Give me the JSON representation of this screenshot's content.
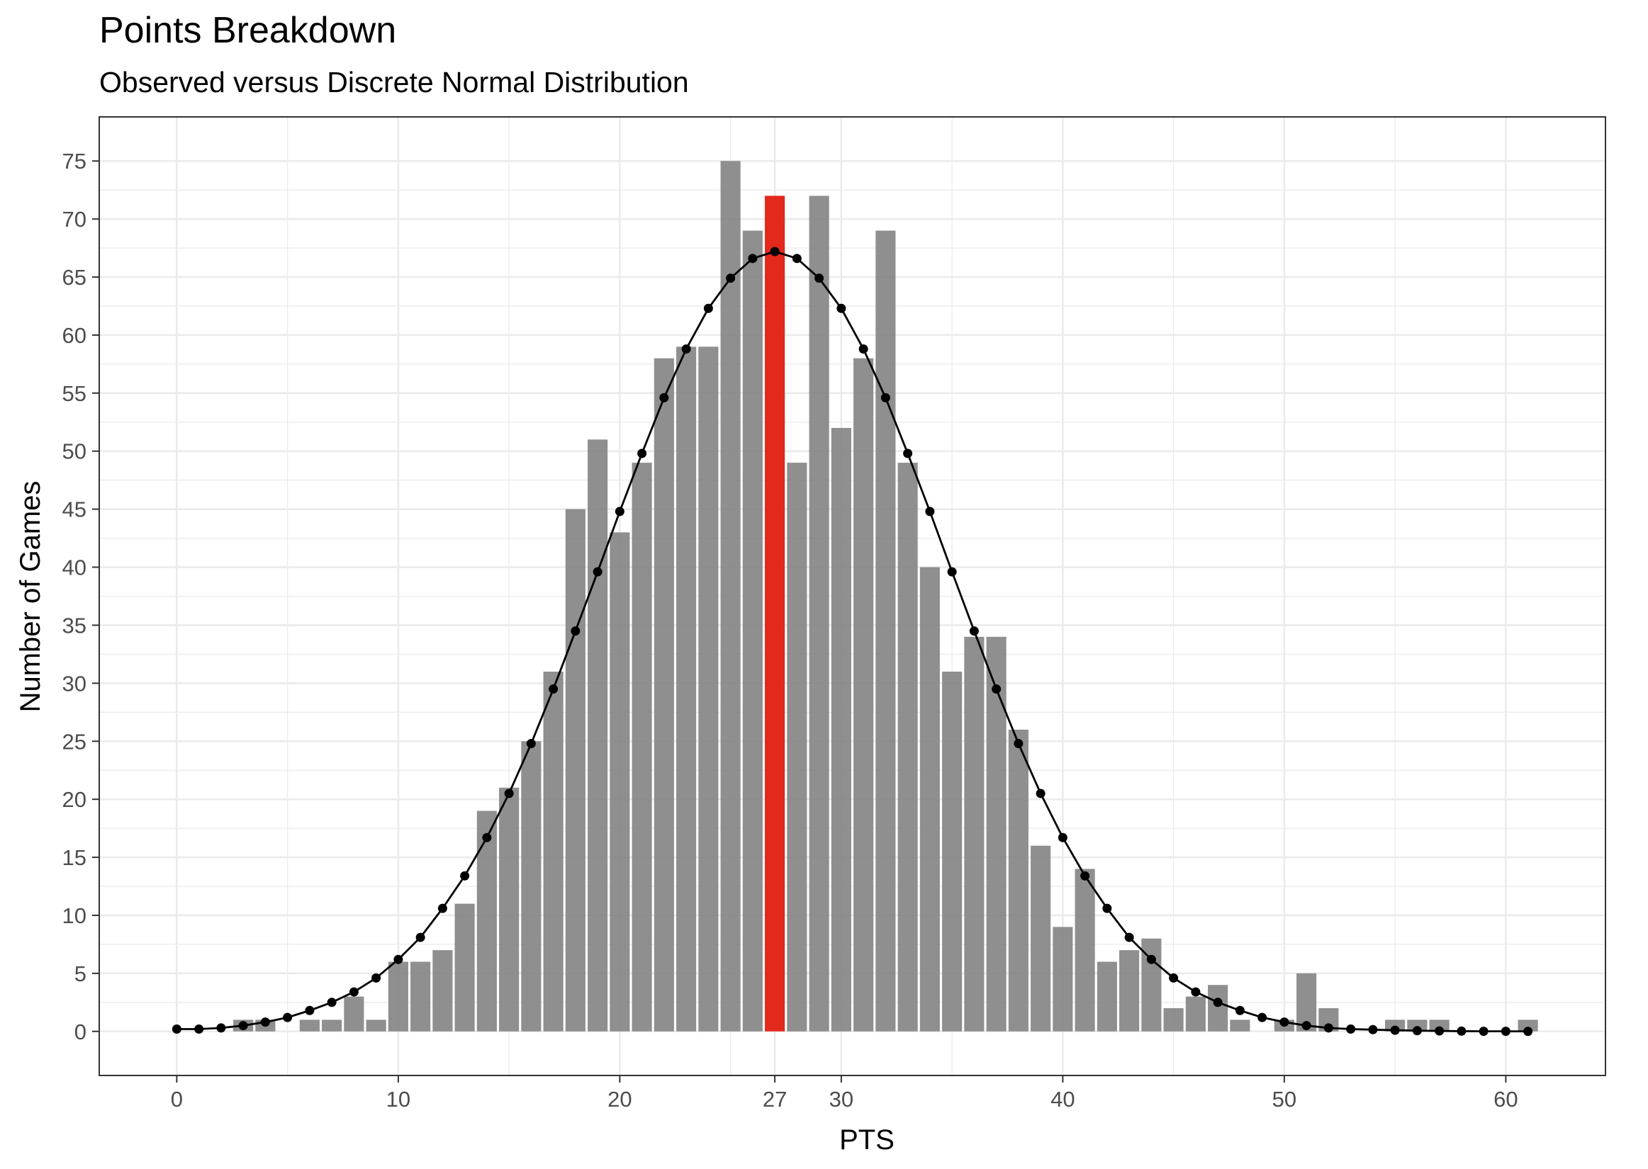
{
  "chart_data": {
    "type": "bar",
    "title": "Points Breakdown",
    "subtitle": "Observed versus Discrete Normal Distribution",
    "xlabel": "PTS",
    "ylabel": "Number of Games",
    "xlim": [
      -3.5,
      64.5
    ],
    "ylim": [
      -3.8,
      78.8
    ],
    "x_ticks": [
      0,
      10,
      20,
      27,
      30,
      40,
      50,
      60
    ],
    "y_ticks": [
      0,
      5,
      10,
      15,
      20,
      25,
      30,
      35,
      40,
      45,
      50,
      55,
      60,
      65,
      70,
      75
    ],
    "grid": true,
    "legend": "none",
    "highlight_x": 27,
    "colors": {
      "bar": "#7f7f7f",
      "highlight": "#e3281c",
      "line": "#000000",
      "grid": "#ebebeb"
    },
    "series": [
      {
        "type": "bar",
        "x": [
          0,
          1,
          2,
          3,
          4,
          5,
          6,
          7,
          8,
          9,
          10,
          11,
          12,
          13,
          14,
          15,
          16,
          17,
          18,
          19,
          20,
          21,
          22,
          23,
          24,
          25,
          26,
          27,
          28,
          29,
          30,
          31,
          32,
          33,
          34,
          35,
          36,
          37,
          38,
          39,
          40,
          41,
          42,
          43,
          44,
          45,
          46,
          47,
          48,
          49,
          50,
          51,
          52,
          53,
          54,
          55,
          56,
          57,
          58,
          59,
          60,
          61
        ],
        "values": [
          0,
          0,
          0,
          1,
          1,
          0,
          1,
          1,
          3,
          1,
          6,
          6,
          7,
          11,
          19,
          21,
          25,
          31,
          45,
          51,
          43,
          49,
          58,
          59,
          59,
          75,
          69,
          72,
          49,
          72,
          52,
          58,
          69,
          49,
          40,
          31,
          34,
          34,
          26,
          16,
          9,
          14,
          6,
          7,
          8,
          2,
          3,
          4,
          1,
          0,
          1,
          5,
          2,
          0,
          0,
          1,
          1,
          1,
          0,
          0,
          0,
          1
        ]
      },
      {
        "type": "line",
        "markers": true,
        "x": [
          0,
          1,
          2,
          3,
          4,
          5,
          6,
          7,
          8,
          9,
          10,
          11,
          12,
          13,
          14,
          15,
          16,
          17,
          18,
          19,
          20,
          21,
          22,
          23,
          24,
          25,
          26,
          27,
          28,
          29,
          30,
          31,
          32,
          33,
          34,
          35,
          36,
          37,
          38,
          39,
          40,
          41,
          42,
          43,
          44,
          45,
          46,
          47,
          48,
          49,
          50,
          51,
          52,
          53,
          54,
          55,
          56,
          57,
          58,
          59,
          60,
          61
        ],
        "values": [
          0.2,
          0.2,
          0.3,
          0.5,
          0.8,
          1.2,
          1.8,
          2.5,
          3.4,
          4.6,
          6.2,
          8.1,
          10.6,
          13.4,
          16.7,
          20.5,
          24.8,
          29.5,
          34.5,
          39.6,
          44.8,
          49.8,
          54.6,
          58.8,
          62.3,
          64.9,
          66.6,
          67.2,
          66.6,
          64.9,
          62.3,
          58.8,
          54.6,
          49.8,
          44.8,
          39.6,
          34.5,
          29.5,
          24.8,
          20.5,
          16.7,
          13.4,
          10.6,
          8.1,
          6.2,
          4.6,
          3.4,
          2.5,
          1.8,
          1.2,
          0.8,
          0.5,
          0.3,
          0.2,
          0.15,
          0.1,
          0.06,
          0.04,
          0.02,
          0.01,
          0.01,
          0.0
        ]
      }
    ]
  }
}
